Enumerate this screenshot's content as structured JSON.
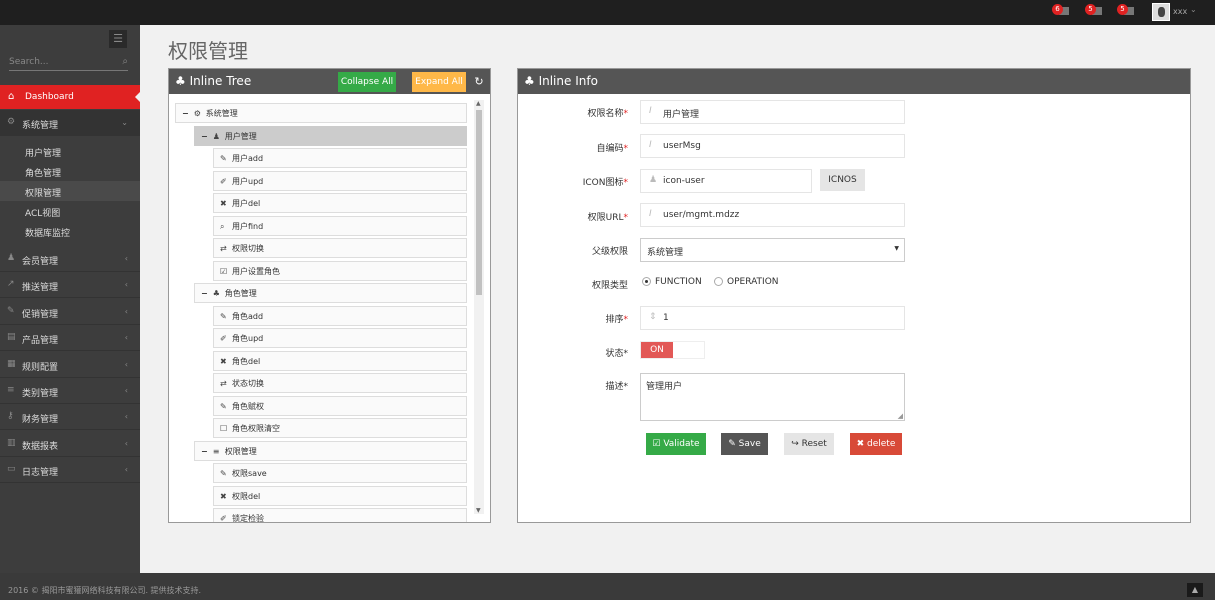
{
  "topbar": {
    "notifications": [
      {
        "count": "6",
        "icon": "warning-icon"
      },
      {
        "count": "5",
        "icon": "envelope-icon"
      },
      {
        "count": "5",
        "icon": "tasks-icon"
      }
    ],
    "username": "xxx"
  },
  "sidebar": {
    "search_placeholder": "Search...",
    "dashboard": "Dashboard",
    "system": "系统管理",
    "sub_items": [
      "用户管理",
      "角色管理",
      "权限管理",
      "ACL视图",
      "数据库监控"
    ],
    "active_sub": "权限管理",
    "items": [
      {
        "label": "会员管理",
        "icon": "user-icon"
      },
      {
        "label": "推送管理",
        "icon": "share-icon"
      },
      {
        "label": "促销管理",
        "icon": "pencil-icon"
      },
      {
        "label": "产品管理",
        "icon": "box-icon"
      },
      {
        "label": "规则配置",
        "icon": "list-alt-icon"
      },
      {
        "label": "类别管理",
        "icon": "bars-icon"
      },
      {
        "label": "财务管理",
        "icon": "key-icon"
      },
      {
        "label": "数据报表",
        "icon": "bar-chart-icon"
      },
      {
        "label": "日志管理",
        "icon": "credit-card-icon"
      }
    ]
  },
  "page_title": "权限管理",
  "tree": {
    "title": "Inline Tree",
    "collapse_all": "Collapse All",
    "expand_all": "Expand All",
    "colors": {
      "collapse": "#35aa47",
      "expand": "#ffb848"
    },
    "nodes": [
      {
        "level": 0,
        "label": "系统管理",
        "icon": "cogs-icon",
        "toggle": "−"
      },
      {
        "level": 1,
        "label": "用户管理",
        "icon": "user-icon",
        "toggle": "−",
        "selected": true
      },
      {
        "level": 2,
        "label": "用户add",
        "icon": "pencil-icon"
      },
      {
        "level": 2,
        "label": "用户upd",
        "icon": "edit-icon"
      },
      {
        "level": 2,
        "label": "用户del",
        "icon": "times-icon"
      },
      {
        "level": 2,
        "label": "用户find",
        "icon": "search-icon"
      },
      {
        "level": 2,
        "label": "权限切换",
        "icon": "retweet-icon"
      },
      {
        "level": 2,
        "label": "用户设置角色",
        "icon": "check-square-icon"
      },
      {
        "level": 1,
        "label": "角色管理",
        "icon": "sitemap-icon",
        "toggle": "−"
      },
      {
        "level": 2,
        "label": "角色add",
        "icon": "pencil-icon"
      },
      {
        "level": 2,
        "label": "角色upd",
        "icon": "edit-icon"
      },
      {
        "level": 2,
        "label": "角色del",
        "icon": "times-icon"
      },
      {
        "level": 2,
        "label": "状态切换",
        "icon": "retweet-icon"
      },
      {
        "level": 2,
        "label": "角色赋权",
        "icon": "pencil-icon"
      },
      {
        "level": 2,
        "label": "角色权限清空",
        "icon": "square-icon"
      },
      {
        "level": 1,
        "label": "权限管理",
        "icon": "bars-icon",
        "toggle": "−"
      },
      {
        "level": 2,
        "label": "权限save",
        "icon": "pencil-icon"
      },
      {
        "level": 2,
        "label": "权限del",
        "icon": "times-icon"
      },
      {
        "level": 2,
        "label": "锁定检验",
        "icon": "edit-icon"
      }
    ]
  },
  "info": {
    "title": "Inline Info",
    "fields": {
      "name": {
        "label": "权限名称",
        "value": "用户管理"
      },
      "code": {
        "label": "自编码",
        "value": "userMsg"
      },
      "icon": {
        "label": "ICON图标",
        "value": "icon-user",
        "button": "ICNOS"
      },
      "url": {
        "label": "权限URL",
        "value": "user/mgmt.mdzz"
      },
      "parent": {
        "label": "父级权限",
        "value": "系统管理"
      },
      "type": {
        "label": "权限类型",
        "options": [
          "FUNCTION",
          "OPERATION"
        ],
        "selected": "FUNCTION"
      },
      "order": {
        "label": "排序",
        "value": "1"
      },
      "status": {
        "label": "状态",
        "value": "ON",
        "on": true
      },
      "desc": {
        "label": "描述",
        "value": "管理用户"
      }
    },
    "buttons": {
      "validate": "Validate",
      "save": "Save",
      "reset": "Reset",
      "delete": "delete"
    },
    "colors": {
      "validate": "#35aa47",
      "save": "#555555",
      "reset": "#e5e5e5",
      "delete": "#d84a38",
      "toggle_on": "#e25856"
    }
  },
  "footer": {
    "text": "2016 © 揭阳市蜜獾网络科技有限公司. 提供技术支持."
  }
}
